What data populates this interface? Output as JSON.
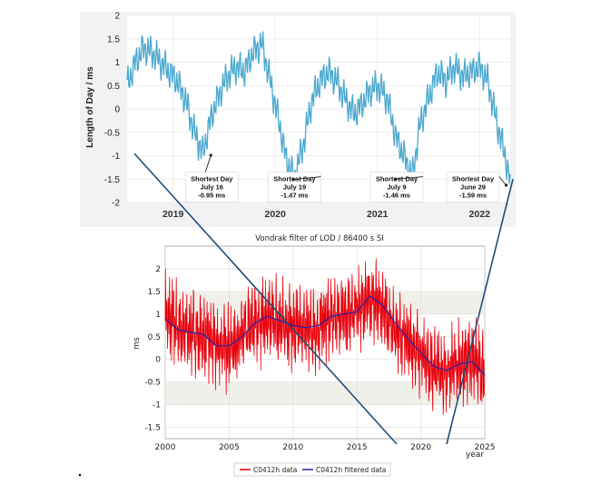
{
  "chart_data": [
    {
      "type": "line",
      "title": "",
      "xlabel": "",
      "ylabel": "Length of Day / ms",
      "xlim": [
        2018.55,
        2022.3
      ],
      "ylim": [
        -2,
        2
      ],
      "y_ticks": [
        "2",
        "1.5",
        "1",
        "0.5",
        "0",
        "-0.5",
        "-1",
        "-1.5",
        "-2"
      ],
      "x_tick_labels": [
        {
          "label": "2019",
          "x": 2019.0
        },
        {
          "label": "2020",
          "x": 2020.0
        },
        {
          "label": "2021",
          "x": 2021.0
        },
        {
          "label": "2022",
          "x": 2022.0
        }
      ],
      "grid": true,
      "line_color": "#4aa8cf",
      "series": [
        {
          "name": "",
          "x": [
            2018.55,
            2018.63,
            2018.71,
            2018.8,
            2018.88,
            2018.96,
            2019.04,
            2019.12,
            2019.21,
            2019.29,
            2019.37,
            2019.45,
            2019.53,
            2019.62,
            2019.7,
            2019.78,
            2019.87,
            2019.95,
            2020.03,
            2020.11,
            2020.19,
            2020.28,
            2020.36,
            2020.44,
            2020.52,
            2020.6,
            2020.69,
            2020.77,
            2020.85,
            2020.93,
            2021.01,
            2021.1,
            2021.18,
            2021.26,
            2021.34,
            2021.42,
            2021.51,
            2021.59,
            2021.67,
            2021.75,
            2021.84,
            2021.92,
            2022.0,
            2022.08,
            2022.17,
            2022.25,
            2022.3
          ],
          "y": [
            0.5,
            1.0,
            1.3,
            1.2,
            1.0,
            0.8,
            0.6,
            0.2,
            -0.5,
            -0.95,
            -0.2,
            0.3,
            0.7,
            0.9,
            0.8,
            1.2,
            1.4,
            0.6,
            -0.2,
            -1.1,
            -1.47,
            -0.7,
            0.2,
            0.6,
            0.8,
            0.6,
            0.2,
            -0.1,
            0.1,
            0.4,
            0.5,
            0.2,
            -0.6,
            -1.0,
            -1.46,
            -0.3,
            0.3,
            0.8,
            0.6,
            0.9,
            0.7,
            0.8,
            0.9,
            0.6,
            -0.3,
            -1.0,
            -1.59
          ]
        }
      ],
      "annotations": [
        {
          "lines": [
            "Shortest Day",
            "July 16",
            "-0.95 ms"
          ],
          "x": 2019.37,
          "y": -0.95
        },
        {
          "lines": [
            "Shortest Day",
            "July 19",
            "-1.47 ms"
          ],
          "x": 2020.18,
          "y": -1.47
        },
        {
          "lines": [
            "Shortest Day",
            "July 9",
            "-1.46 ms"
          ],
          "x": 2021.18,
          "y": -1.46
        },
        {
          "lines": [
            "Shortest Day",
            "June 29",
            "-1.59 ms"
          ],
          "x": 2022.26,
          "y": -1.59
        }
      ]
    },
    {
      "type": "line",
      "title": "Vondrak filter of LOD / 86400 s SI",
      "xlabel": "year",
      "ylabel": "ms",
      "xlim": [
        2000,
        2025
      ],
      "ylim": [
        -1.75,
        2.5
      ],
      "x_ticks": [
        "2000",
        "2005",
        "2010",
        "2015",
        "2020",
        "2025"
      ],
      "y_ticks": [
        "2",
        "1.5",
        "1",
        "0.5",
        "0",
        "-0.5",
        "-1",
        "-1.5"
      ],
      "grid": true,
      "legend": "bottom",
      "series": [
        {
          "name": "C0412h data",
          "color": "#e8000b",
          "x": [
            2000,
            2001,
            2002,
            2003,
            2004,
            2005,
            2006,
            2007,
            2008,
            2009,
            2010,
            2011,
            2012,
            2013,
            2014,
            2015,
            2016,
            2017,
            2018,
            2019,
            2020,
            2021,
            2022,
            2023,
            2024,
            2025
          ],
          "y": [
            1.0,
            0.7,
            0.6,
            0.5,
            0.3,
            0.3,
            0.5,
            0.8,
            0.9,
            0.8,
            0.7,
            0.65,
            0.7,
            0.9,
            1.0,
            1.1,
            1.35,
            1.1,
            0.7,
            0.4,
            0.1,
            -0.2,
            -0.3,
            -0.1,
            0.0,
            -0.3
          ]
        },
        {
          "name": "C0412h filtered data",
          "color": "#2222aa",
          "x": [
            2000,
            2001,
            2002,
            2003,
            2004,
            2005,
            2006,
            2007,
            2008,
            2009,
            2010,
            2011,
            2012,
            2013,
            2014,
            2015,
            2016,
            2017,
            2018,
            2019,
            2020,
            2021,
            2022,
            2023,
            2024,
            2025
          ],
          "y": [
            0.9,
            0.65,
            0.6,
            0.55,
            0.3,
            0.3,
            0.5,
            0.8,
            0.95,
            0.85,
            0.75,
            0.7,
            0.75,
            0.95,
            1.0,
            1.05,
            1.4,
            1.2,
            0.8,
            0.45,
            0.15,
            -0.15,
            -0.25,
            -0.1,
            -0.05,
            -0.35
          ]
        }
      ]
    }
  ]
}
